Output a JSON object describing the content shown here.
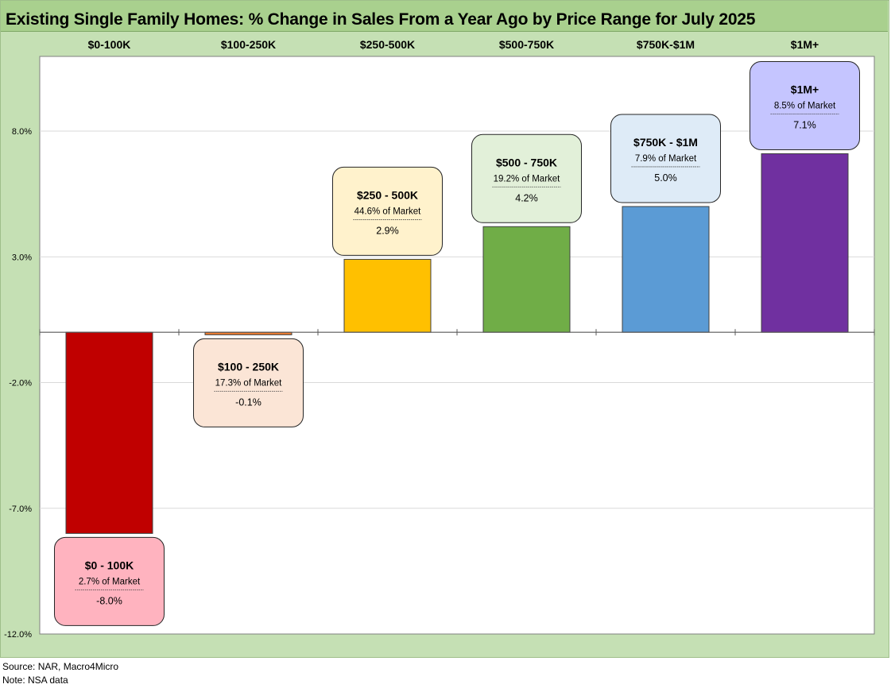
{
  "title": "Existing Single Family Homes: % Change in Sales From a Year Ago by Price Range for July 2025",
  "footer": {
    "source": "Source: NAR, Macro4Micro",
    "note": "Note: NSA data"
  },
  "colors": {
    "frame": "#c5e0b4",
    "title_bar": "#a9d08e"
  },
  "chart_data": {
    "type": "bar",
    "title": "Existing Single Family Homes: % Change in Sales From a Year Ago by Price Range for July 2025",
    "xlabel": "",
    "ylabel": "",
    "ylim": [
      -12,
      12
    ],
    "yticks": [
      8,
      3,
      -2,
      -7,
      -12
    ],
    "ytick_labels": [
      "8.0%",
      "3.0%",
      "-2.0%",
      "-7.0%",
      "-12.0%"
    ],
    "grid": true,
    "categories": [
      "$0-100K",
      "$100-250K",
      "$250-500K",
      "$500-750K",
      "$750K-$1M",
      "$1M+"
    ],
    "values": [
      -8.0,
      -0.1,
      2.9,
      4.2,
      5.0,
      7.1
    ],
    "bar_colors": [
      "#c00000",
      "#ed7d31",
      "#ffc000",
      "#70ad47",
      "#5b9bd5",
      "#7030a0"
    ],
    "annotations": [
      {
        "label": "$0 - 100K",
        "share": "2.7% of Market",
        "value": "-8.0%",
        "fill": "#ffb3bf"
      },
      {
        "label": "$100 - 250K",
        "share": "17.3% of Market",
        "value": "-0.1%",
        "fill": "#fbe5d6"
      },
      {
        "label": "$250 - 500K",
        "share": "44.6% of Market",
        "value": "2.9%",
        "fill": "#fff2cc"
      },
      {
        "label": "$500 - 750K",
        "share": "19.2% of Market",
        "value": "4.2%",
        "fill": "#e2f0d9"
      },
      {
        "label": "$750K - $1M",
        "share": "7.9% of Market",
        "value": "5.0%",
        "fill": "#deebf7"
      },
      {
        "label": "$1M+",
        "share": "8.5% of Market",
        "value": "7.1%",
        "fill": "#c5c5ff"
      }
    ]
  }
}
